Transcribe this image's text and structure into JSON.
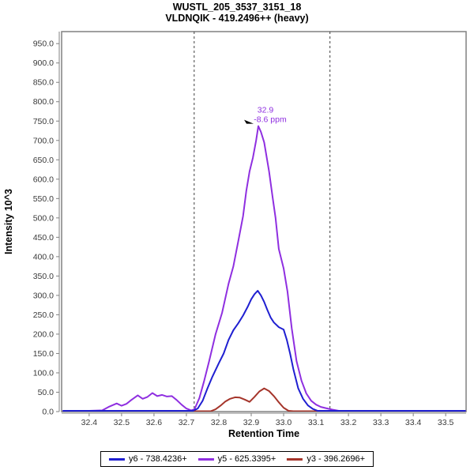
{
  "window": {
    "title_line1": "WUSTL_205_3537_3151_18",
    "title_line2": "VLDNQIK - 419.2496++ (heavy)"
  },
  "colors": {
    "axis_gray": "#808080",
    "tick_label": "#3a3a3a",
    "boundary_dash": "#404040",
    "annotation_purple": "#8f2fe0",
    "series_blue": "#1f1fd1",
    "series_purple": "#8f2fe0",
    "series_red": "#a5352b"
  },
  "chart_data": {
    "type": "line",
    "title": "WUSTL_205_3537_3151_18",
    "subtitle": "VLDNQIK - 419.2496++ (heavy)",
    "xlabel": "Retention Time",
    "ylabel": "Intensity 10^3",
    "xlim": [
      32.315,
      33.563
    ],
    "ylim": [
      0,
      981
    ],
    "x_ticks": [
      32.4,
      32.5,
      32.6,
      32.7,
      32.8,
      32.9,
      33.0,
      33.1,
      33.2,
      33.3,
      33.4,
      33.5
    ],
    "y_ticks": [
      0,
      50,
      100,
      150,
      200,
      250,
      300,
      350,
      400,
      450,
      500,
      550,
      600,
      650,
      700,
      750,
      800,
      850,
      900,
      950
    ],
    "grid": false,
    "legend_position": "bottom",
    "integration_boundaries": [
      32.724,
      33.143
    ],
    "peak_annotation": {
      "rt_label": "32.9",
      "ppm_label": "-8.6 ppm",
      "x": 32.922,
      "y": 737
    },
    "series": [
      {
        "name": "y6 - 738.4236+",
        "color": "#1f1fd1",
        "x": [
          32.32,
          32.72,
          32.735,
          32.75,
          32.765,
          32.78,
          32.8,
          32.815,
          32.83,
          32.845,
          32.86,
          32.875,
          32.89,
          32.9,
          32.91,
          32.92,
          32.93,
          32.94,
          32.95,
          32.96,
          32.97,
          32.985,
          33.0,
          33.01,
          33.02,
          33.03,
          33.045,
          33.06,
          33.075,
          33.09,
          33.105,
          33.3,
          33.56
        ],
        "y": [
          2,
          2,
          8,
          28,
          60,
          90,
          125,
          150,
          185,
          210,
          228,
          248,
          272,
          290,
          303,
          312,
          300,
          283,
          262,
          243,
          230,
          218,
          212,
          185,
          150,
          110,
          60,
          33,
          16,
          7,
          2,
          2,
          2
        ]
      },
      {
        "name": "y5 - 625.3395+",
        "color": "#8f2fe0",
        "x": [
          32.32,
          32.4,
          32.44,
          32.46,
          32.485,
          32.5,
          32.515,
          32.53,
          32.55,
          32.565,
          32.58,
          32.595,
          32.61,
          32.625,
          32.64,
          32.655,
          32.67,
          32.685,
          32.7,
          32.715,
          32.725,
          32.74,
          32.755,
          32.77,
          32.79,
          32.81,
          32.83,
          32.845,
          32.86,
          32.875,
          32.885,
          32.895,
          32.905,
          32.915,
          32.922,
          32.93,
          32.94,
          32.955,
          32.966,
          32.975,
          32.985,
          33.0,
          33.012,
          33.025,
          33.04,
          33.055,
          33.07,
          33.085,
          33.1,
          33.115,
          33.13,
          33.15,
          33.17,
          33.3,
          33.56
        ],
        "y": [
          2,
          2,
          3,
          12,
          21,
          15,
          20,
          30,
          42,
          33,
          38,
          48,
          40,
          43,
          39,
          40,
          30,
          18,
          8,
          3,
          6,
          35,
          80,
          130,
          200,
          255,
          330,
          375,
          440,
          505,
          570,
          620,
          655,
          700,
          737,
          722,
          695,
          620,
          553,
          500,
          420,
          370,
          310,
          215,
          130,
          80,
          47,
          28,
          18,
          12,
          9,
          5,
          2,
          2,
          2
        ]
      },
      {
        "name": "y3 - 396.2696+",
        "color": "#a5352b",
        "x": [
          32.32,
          32.775,
          32.79,
          32.805,
          32.82,
          32.835,
          32.85,
          32.865,
          32.88,
          32.895,
          32.91,
          32.925,
          32.94,
          32.955,
          32.97,
          32.985,
          33.0,
          33.015,
          33.03,
          33.56
        ],
        "y": [
          1,
          1,
          6,
          15,
          26,
          33,
          37,
          36,
          31,
          25,
          38,
          52,
          60,
          53,
          40,
          24,
          10,
          2,
          1,
          1
        ]
      }
    ]
  }
}
